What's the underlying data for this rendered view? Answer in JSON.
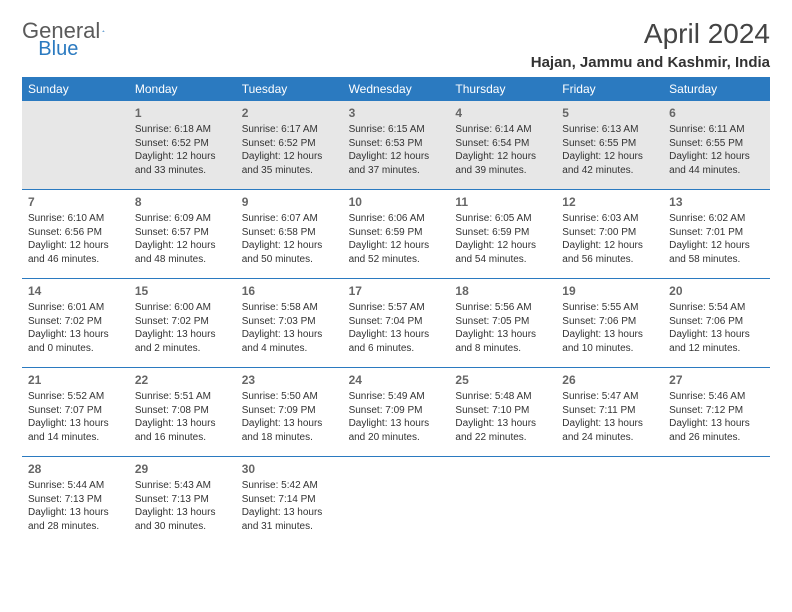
{
  "logo": {
    "text1": "General",
    "text2": "Blue"
  },
  "title": "April 2024",
  "location": "Hajan, Jammu and Kashmir, India",
  "weekdays": [
    "Sunday",
    "Monday",
    "Tuesday",
    "Wednesday",
    "Thursday",
    "Friday",
    "Saturday"
  ],
  "colors": {
    "header_bg": "#2b7ac0",
    "gray_row": "#e7e7e7",
    "divider": "#2b7ac0"
  },
  "weeks": [
    {
      "gray": true,
      "days": [
        {
          "num": "",
          "lines": []
        },
        {
          "num": "1",
          "lines": [
            "Sunrise: 6:18 AM",
            "Sunset: 6:52 PM",
            "Daylight: 12 hours",
            "and 33 minutes."
          ]
        },
        {
          "num": "2",
          "lines": [
            "Sunrise: 6:17 AM",
            "Sunset: 6:52 PM",
            "Daylight: 12 hours",
            "and 35 minutes."
          ]
        },
        {
          "num": "3",
          "lines": [
            "Sunrise: 6:15 AM",
            "Sunset: 6:53 PM",
            "Daylight: 12 hours",
            "and 37 minutes."
          ]
        },
        {
          "num": "4",
          "lines": [
            "Sunrise: 6:14 AM",
            "Sunset: 6:54 PM",
            "Daylight: 12 hours",
            "and 39 minutes."
          ]
        },
        {
          "num": "5",
          "lines": [
            "Sunrise: 6:13 AM",
            "Sunset: 6:55 PM",
            "Daylight: 12 hours",
            "and 42 minutes."
          ]
        },
        {
          "num": "6",
          "lines": [
            "Sunrise: 6:11 AM",
            "Sunset: 6:55 PM",
            "Daylight: 12 hours",
            "and 44 minutes."
          ]
        }
      ]
    },
    {
      "gray": false,
      "days": [
        {
          "num": "7",
          "lines": [
            "Sunrise: 6:10 AM",
            "Sunset: 6:56 PM",
            "Daylight: 12 hours",
            "and 46 minutes."
          ]
        },
        {
          "num": "8",
          "lines": [
            "Sunrise: 6:09 AM",
            "Sunset: 6:57 PM",
            "Daylight: 12 hours",
            "and 48 minutes."
          ]
        },
        {
          "num": "9",
          "lines": [
            "Sunrise: 6:07 AM",
            "Sunset: 6:58 PM",
            "Daylight: 12 hours",
            "and 50 minutes."
          ]
        },
        {
          "num": "10",
          "lines": [
            "Sunrise: 6:06 AM",
            "Sunset: 6:59 PM",
            "Daylight: 12 hours",
            "and 52 minutes."
          ]
        },
        {
          "num": "11",
          "lines": [
            "Sunrise: 6:05 AM",
            "Sunset: 6:59 PM",
            "Daylight: 12 hours",
            "and 54 minutes."
          ]
        },
        {
          "num": "12",
          "lines": [
            "Sunrise: 6:03 AM",
            "Sunset: 7:00 PM",
            "Daylight: 12 hours",
            "and 56 minutes."
          ]
        },
        {
          "num": "13",
          "lines": [
            "Sunrise: 6:02 AM",
            "Sunset: 7:01 PM",
            "Daylight: 12 hours",
            "and 58 minutes."
          ]
        }
      ]
    },
    {
      "gray": false,
      "days": [
        {
          "num": "14",
          "lines": [
            "Sunrise: 6:01 AM",
            "Sunset: 7:02 PM",
            "Daylight: 13 hours",
            "and 0 minutes."
          ]
        },
        {
          "num": "15",
          "lines": [
            "Sunrise: 6:00 AM",
            "Sunset: 7:02 PM",
            "Daylight: 13 hours",
            "and 2 minutes."
          ]
        },
        {
          "num": "16",
          "lines": [
            "Sunrise: 5:58 AM",
            "Sunset: 7:03 PM",
            "Daylight: 13 hours",
            "and 4 minutes."
          ]
        },
        {
          "num": "17",
          "lines": [
            "Sunrise: 5:57 AM",
            "Sunset: 7:04 PM",
            "Daylight: 13 hours",
            "and 6 minutes."
          ]
        },
        {
          "num": "18",
          "lines": [
            "Sunrise: 5:56 AM",
            "Sunset: 7:05 PM",
            "Daylight: 13 hours",
            "and 8 minutes."
          ]
        },
        {
          "num": "19",
          "lines": [
            "Sunrise: 5:55 AM",
            "Sunset: 7:06 PM",
            "Daylight: 13 hours",
            "and 10 minutes."
          ]
        },
        {
          "num": "20",
          "lines": [
            "Sunrise: 5:54 AM",
            "Sunset: 7:06 PM",
            "Daylight: 13 hours",
            "and 12 minutes."
          ]
        }
      ]
    },
    {
      "gray": false,
      "days": [
        {
          "num": "21",
          "lines": [
            "Sunrise: 5:52 AM",
            "Sunset: 7:07 PM",
            "Daylight: 13 hours",
            "and 14 minutes."
          ]
        },
        {
          "num": "22",
          "lines": [
            "Sunrise: 5:51 AM",
            "Sunset: 7:08 PM",
            "Daylight: 13 hours",
            "and 16 minutes."
          ]
        },
        {
          "num": "23",
          "lines": [
            "Sunrise: 5:50 AM",
            "Sunset: 7:09 PM",
            "Daylight: 13 hours",
            "and 18 minutes."
          ]
        },
        {
          "num": "24",
          "lines": [
            "Sunrise: 5:49 AM",
            "Sunset: 7:09 PM",
            "Daylight: 13 hours",
            "and 20 minutes."
          ]
        },
        {
          "num": "25",
          "lines": [
            "Sunrise: 5:48 AM",
            "Sunset: 7:10 PM",
            "Daylight: 13 hours",
            "and 22 minutes."
          ]
        },
        {
          "num": "26",
          "lines": [
            "Sunrise: 5:47 AM",
            "Sunset: 7:11 PM",
            "Daylight: 13 hours",
            "and 24 minutes."
          ]
        },
        {
          "num": "27",
          "lines": [
            "Sunrise: 5:46 AM",
            "Sunset: 7:12 PM",
            "Daylight: 13 hours",
            "and 26 minutes."
          ]
        }
      ]
    },
    {
      "gray": false,
      "days": [
        {
          "num": "28",
          "lines": [
            "Sunrise: 5:44 AM",
            "Sunset: 7:13 PM",
            "Daylight: 13 hours",
            "and 28 minutes."
          ]
        },
        {
          "num": "29",
          "lines": [
            "Sunrise: 5:43 AM",
            "Sunset: 7:13 PM",
            "Daylight: 13 hours",
            "and 30 minutes."
          ]
        },
        {
          "num": "30",
          "lines": [
            "Sunrise: 5:42 AM",
            "Sunset: 7:14 PM",
            "Daylight: 13 hours",
            "and 31 minutes."
          ]
        },
        {
          "num": "",
          "lines": []
        },
        {
          "num": "",
          "lines": []
        },
        {
          "num": "",
          "lines": []
        },
        {
          "num": "",
          "lines": []
        }
      ]
    }
  ]
}
